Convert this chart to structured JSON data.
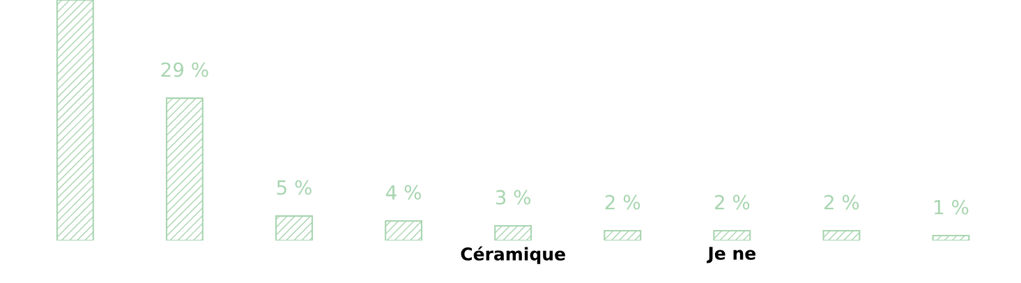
{
  "chart_data": {
    "type": "bar",
    "categories": [
      null,
      null,
      null,
      null,
      "Céramique",
      null,
      "Je ne",
      null,
      null
    ],
    "values": [
      49,
      29,
      5,
      4,
      3,
      2,
      2,
      2,
      1
    ],
    "value_labels": [
      null,
      "29 %",
      "5 %",
      "4 %",
      "3 %",
      "2 %",
      "2 %",
      "2 %",
      "1 %"
    ],
    "color": "#a8d5b0"
  }
}
